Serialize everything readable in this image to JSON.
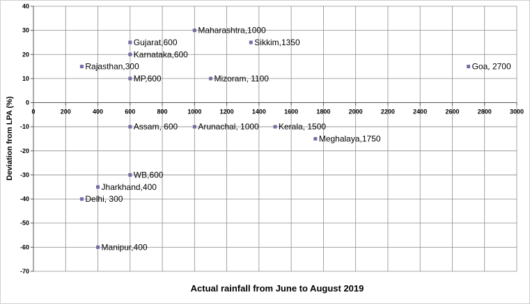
{
  "chart_data": {
    "type": "scatter",
    "xlabel": "Actual rainfall from June to August 2019",
    "ylabel": "Deviation from LPA (%)",
    "xlim": [
      0,
      3000
    ],
    "ylim": [
      -70,
      40
    ],
    "x_ticks": [
      "0",
      "200",
      "400",
      "600",
      "800",
      "1000",
      "1200",
      "1400",
      "1600",
      "1800",
      "2000",
      "2200",
      "2400",
      "2600",
      "2800",
      "3000"
    ],
    "y_ticks": [
      "40",
      "30",
      "20",
      "10",
      "0",
      "-10",
      "-20",
      "-30",
      "-40",
      "-50",
      "-60",
      "-70"
    ],
    "grid": "major gridlines every 200 on x, every 10 on y",
    "marker_color": "#7b68a8",
    "points": [
      {
        "label": "Maharashtra,1000",
        "x": 1000,
        "y": 30
      },
      {
        "label": "Gujarat,600",
        "x": 600,
        "y": 25
      },
      {
        "label": "Sikkim,1350",
        "x": 1350,
        "y": 25
      },
      {
        "label": "Karnataka,600",
        "x": 600,
        "y": 20
      },
      {
        "label": "Rajasthan,300",
        "x": 300,
        "y": 15
      },
      {
        "label": "Goa, 2700",
        "x": 2700,
        "y": 15
      },
      {
        "label": "MP,600",
        "x": 600,
        "y": 10
      },
      {
        "label": "Mizoram, 1100",
        "x": 1100,
        "y": 10
      },
      {
        "label": "Assam, 600",
        "x": 600,
        "y": -10
      },
      {
        "label": "Arunachal, 1000",
        "x": 1000,
        "y": -10
      },
      {
        "label": "Kerala, 1500",
        "x": 1500,
        "y": -10
      },
      {
        "label": "Meghalaya,1750",
        "x": 1750,
        "y": -15
      },
      {
        "label": "WB,600",
        "x": 600,
        "y": -30
      },
      {
        "label": "Jharkhand,400",
        "x": 400,
        "y": -35
      },
      {
        "label": "Delhi, 300",
        "x": 300,
        "y": -40
      },
      {
        "label": "Manipur,400",
        "x": 400,
        "y": -60
      }
    ]
  }
}
